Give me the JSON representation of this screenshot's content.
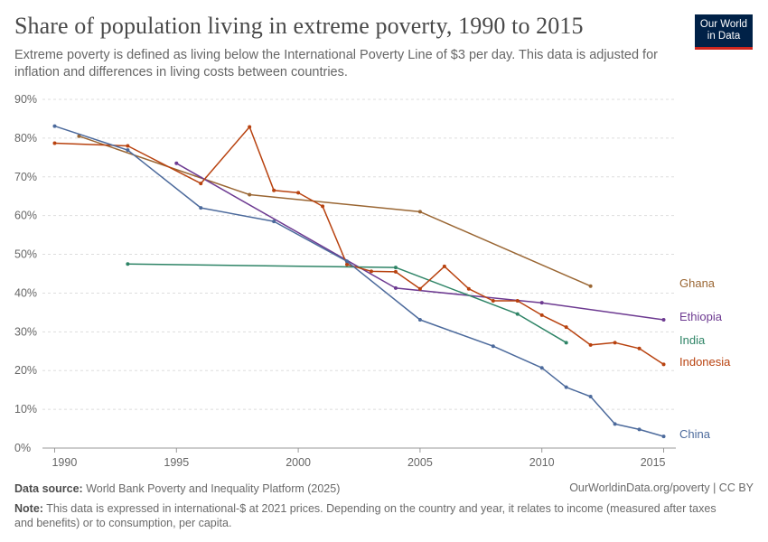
{
  "header": {
    "title": "Share of population living in extreme poverty, 1990 to 2015",
    "subtitle": "Extreme poverty is defined as living below the International Poverty Line of $3 per day. This data is adjusted for inflation and differences in living costs between countries.",
    "logo_line1": "Our World",
    "logo_line2": "in Data"
  },
  "footer": {
    "source_label": "Data source:",
    "source_text": "World Bank Poverty and Inequality Platform (2025)",
    "url": "OurWorldinData.org/poverty | CC BY",
    "note_label": "Note:",
    "note_text": "This data is expressed in international-$ at 2021 prices. Depending on the country and year, it relates to income (measured after taxes and benefits) or to consumption, per capita."
  },
  "chart_data": {
    "type": "line",
    "title": "Share of population living in extreme poverty, 1990 to 2015",
    "xlim": [
      1989.5,
      2015.5
    ],
    "ylim": [
      0,
      90
    ],
    "x_ticks": [
      1990,
      1995,
      2000,
      2005,
      2010,
      2015
    ],
    "y_ticks": [
      0,
      10,
      20,
      30,
      40,
      50,
      60,
      70,
      80,
      90
    ],
    "y_tick_suffix": "%",
    "grid": true,
    "legend": "right, labels at line ends",
    "series": [
      {
        "name": "Ghana",
        "color": "#9a6633",
        "points": [
          [
            1991,
            80.5
          ],
          [
            1998,
            65.4
          ],
          [
            2005,
            61.0
          ],
          [
            2012,
            41.8
          ]
        ]
      },
      {
        "name": "Ethiopia",
        "color": "#6d3a91",
        "points": [
          [
            1995,
            73.5
          ],
          [
            2004,
            41.3
          ],
          [
            2010,
            37.5
          ],
          [
            2015,
            33.1
          ]
        ]
      },
      {
        "name": "India",
        "color": "#2e8466",
        "points": [
          [
            1993,
            47.5
          ],
          [
            2004,
            46.6
          ],
          [
            2009,
            34.6
          ],
          [
            2011,
            27.2
          ]
        ]
      },
      {
        "name": "Indonesia",
        "color": "#b8420f",
        "points": [
          [
            1990,
            78.7
          ],
          [
            1993,
            78.0
          ],
          [
            1996,
            68.3
          ],
          [
            1998,
            82.9
          ],
          [
            1999,
            66.5
          ],
          [
            2000,
            65.9
          ],
          [
            2001,
            62.4
          ],
          [
            2002,
            47.4
          ],
          [
            2003,
            45.6
          ],
          [
            2004,
            45.5
          ],
          [
            2005,
            41.1
          ],
          [
            2006,
            46.9
          ],
          [
            2007,
            41.1
          ],
          [
            2008,
            38.0
          ],
          [
            2009,
            38.0
          ],
          [
            2010,
            34.3
          ],
          [
            2011,
            31.2
          ],
          [
            2012,
            26.6
          ],
          [
            2013,
            27.2
          ],
          [
            2014,
            25.7
          ],
          [
            2015,
            21.6
          ]
        ]
      },
      {
        "name": "China",
        "color": "#4c6a9c",
        "points": [
          [
            1990,
            83.1
          ],
          [
            1993,
            76.9
          ],
          [
            1996,
            62.0
          ],
          [
            1999,
            58.5
          ],
          [
            2002,
            48.2
          ],
          [
            2005,
            33.1
          ],
          [
            2008,
            26.3
          ],
          [
            2010,
            20.7
          ],
          [
            2011,
            15.7
          ],
          [
            2012,
            13.3
          ],
          [
            2013,
            6.2
          ],
          [
            2014,
            4.8
          ],
          [
            2015,
            3.0
          ]
        ]
      }
    ]
  }
}
